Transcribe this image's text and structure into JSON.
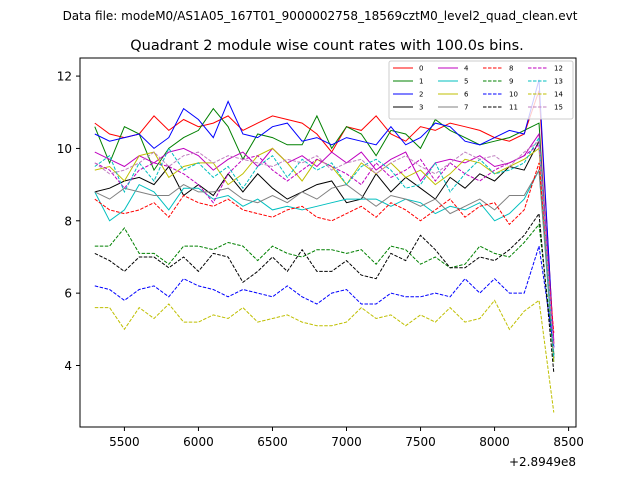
{
  "chart_data": {
    "type": "line",
    "suptitle": "Data file: modeM0/AS1A05_167T01_9000002758_18569cztM0_level2_quad_clean.evt",
    "title": "Quadrant 2 module wise count rates with 100.0s bins.",
    "xlabel": "",
    "ylabel": "",
    "x_offset_label": "+2.8949e8",
    "xlim": [
      5200,
      8550
    ],
    "ylim": [
      2.3,
      12.5
    ],
    "x_ticks": [
      5500,
      6000,
      6500,
      7000,
      7500,
      8000,
      8500
    ],
    "x_tick_labels": [
      "5500",
      "6000",
      "6500",
      "7000",
      "7500",
      "8000",
      "8500"
    ],
    "y_ticks": [
      4,
      6,
      8,
      10,
      12
    ],
    "y_tick_labels": [
      "4",
      "6",
      "8",
      "10",
      "12"
    ],
    "x": [
      5300,
      5400,
      5500,
      5600,
      5700,
      5800,
      5900,
      6000,
      6100,
      6200,
      6300,
      6400,
      6500,
      6600,
      6700,
      6800,
      6900,
      7000,
      7100,
      7200,
      7300,
      7400,
      7500,
      7600,
      7700,
      7800,
      7900,
      8000,
      8100,
      8200,
      8300,
      8400
    ],
    "legend_position": "top-right",
    "series": [
      {
        "name": "0",
        "color": "#ff0000",
        "dash": "solid",
        "values": [
          10.7,
          10.4,
          10.3,
          10.4,
          10.9,
          10.5,
          10.8,
          10.6,
          10.7,
          10.9,
          10.5,
          10.7,
          10.9,
          10.8,
          10.7,
          10.4,
          9.9,
          10.6,
          10.5,
          10.9,
          10.4,
          10.2,
          10.6,
          10.5,
          10.7,
          10.6,
          10.5,
          10.3,
          10.2,
          10.4,
          11.6,
          4.6
        ]
      },
      {
        "name": "1",
        "color": "#008000",
        "dash": "solid",
        "values": [
          10.6,
          9.6,
          10.6,
          10.4,
          9.4,
          10.0,
          10.3,
          10.5,
          11.1,
          10.6,
          9.7,
          10.4,
          10.3,
          10.1,
          10.1,
          10.9,
          10.0,
          10.6,
          10.4,
          9.8,
          10.5,
          10.4,
          10.0,
          10.8,
          10.5,
          10.3,
          10.1,
          10.2,
          10.3,
          10.5,
          10.7,
          4.3
        ]
      },
      {
        "name": "2",
        "color": "#0000ff",
        "dash": "solid",
        "values": [
          10.4,
          10.2,
          10.3,
          10.4,
          10.0,
          10.3,
          11.1,
          10.8,
          10.3,
          11.3,
          10.4,
          10.3,
          10.6,
          10.7,
          10.2,
          10.3,
          10.1,
          10.3,
          10.2,
          10.1,
          10.6,
          10.1,
          10.3,
          10.7,
          10.6,
          10.2,
          10.1,
          10.3,
          10.5,
          10.4,
          11.9,
          4.5
        ]
      },
      {
        "name": "3",
        "color": "#000000",
        "dash": "solid",
        "values": [
          8.8,
          8.9,
          9.1,
          9.2,
          9.0,
          9.5,
          8.7,
          9.0,
          8.7,
          9.3,
          8.8,
          9.3,
          8.9,
          8.6,
          8.8,
          9.0,
          9.1,
          8.5,
          8.6,
          9.3,
          8.8,
          9.2,
          8.9,
          8.6,
          9.2,
          8.9,
          9.3,
          9.1,
          9.5,
          9.4,
          10.2,
          4.2
        ]
      },
      {
        "name": "4",
        "color": "#bf00bf",
        "dash": "solid",
        "values": [
          9.9,
          9.7,
          9.5,
          9.8,
          9.6,
          9.9,
          10.0,
          9.8,
          9.4,
          9.7,
          9.9,
          9.5,
          10.0,
          9.6,
          9.8,
          9.5,
          9.9,
          9.6,
          9.9,
          9.4,
          9.7,
          9.9,
          9.1,
          9.6,
          9.7,
          9.6,
          9.8,
          9.5,
          9.6,
          9.8,
          10.4,
          4.7
        ]
      },
      {
        "name": "5",
        "color": "#00bfbf",
        "dash": "solid",
        "values": [
          8.8,
          8.0,
          8.3,
          9.0,
          8.8,
          8.3,
          8.9,
          8.9,
          8.6,
          8.7,
          8.4,
          8.6,
          8.3,
          8.4,
          8.3,
          8.4,
          8.5,
          8.6,
          8.6,
          8.6,
          8.4,
          8.6,
          8.5,
          8.2,
          8.4,
          8.3,
          8.5,
          8.0,
          8.2,
          8.6,
          9.4,
          4.1
        ]
      },
      {
        "name": "6",
        "color": "#bfbf00",
        "dash": "solid",
        "values": [
          9.4,
          9.5,
          9.1,
          9.8,
          9.9,
          9.2,
          9.5,
          9.6,
          9.6,
          9.0,
          9.3,
          9.8,
          10.0,
          9.6,
          9.1,
          9.7,
          9.5,
          9.0,
          9.6,
          9.3,
          9.6,
          9.2,
          9.4,
          9.0,
          9.3,
          9.7,
          9.6,
          9.3,
          9.5,
          9.7,
          10.0,
          4.1
        ]
      },
      {
        "name": "7",
        "color": "#808080",
        "dash": "solid",
        "values": [
          8.8,
          8.6,
          8.9,
          8.8,
          8.7,
          8.7,
          9.0,
          8.8,
          8.8,
          8.9,
          8.6,
          8.5,
          8.7,
          8.5,
          8.8,
          8.6,
          8.9,
          9.0,
          8.7,
          8.4,
          8.7,
          8.6,
          8.4,
          8.6,
          8.2,
          8.4,
          8.6,
          8.3,
          8.7,
          8.7,
          9.4,
          4.3
        ]
      },
      {
        "name": "8",
        "color": "#ff0000",
        "dash": "dashed",
        "values": [
          8.6,
          8.3,
          8.2,
          8.3,
          8.5,
          8.1,
          8.7,
          8.5,
          8.4,
          8.6,
          8.3,
          8.2,
          8.1,
          8.3,
          8.4,
          8.1,
          8.0,
          8.2,
          8.4,
          8.1,
          8.5,
          8.3,
          8.0,
          8.3,
          8.6,
          8.1,
          8.4,
          8.5,
          7.9,
          8.3,
          9.6,
          4.9
        ]
      },
      {
        "name": "9",
        "color": "#008000",
        "dash": "dashed",
        "values": [
          7.3,
          7.3,
          7.8,
          7.1,
          7.1,
          6.8,
          7.3,
          7.3,
          7.2,
          7.4,
          7.3,
          6.9,
          7.3,
          7.1,
          7.0,
          7.2,
          7.2,
          7.1,
          7.2,
          6.8,
          7.3,
          7.2,
          6.8,
          7.0,
          6.7,
          6.8,
          7.3,
          7.1,
          7.0,
          7.4,
          7.9,
          4.3
        ]
      },
      {
        "name": "10",
        "color": "#0000ff",
        "dash": "dashed",
        "values": [
          6.2,
          6.1,
          5.8,
          6.1,
          6.2,
          5.9,
          6.4,
          6.2,
          6.1,
          5.9,
          6.1,
          6.0,
          5.9,
          6.2,
          5.9,
          5.7,
          6.0,
          6.1,
          5.7,
          5.7,
          6.0,
          5.9,
          5.9,
          6.0,
          5.9,
          6.4,
          6.0,
          6.4,
          6.0,
          6.0,
          7.3,
          4.5
        ]
      },
      {
        "name": "11",
        "color": "#000000",
        "dash": "dashed",
        "values": [
          7.1,
          6.9,
          6.6,
          7.0,
          7.0,
          6.7,
          7.0,
          6.6,
          7.1,
          7.0,
          6.3,
          6.6,
          7.0,
          6.6,
          7.2,
          6.6,
          6.6,
          6.9,
          6.5,
          6.4,
          7.1,
          6.9,
          7.6,
          7.2,
          6.7,
          6.7,
          7.0,
          6.9,
          7.2,
          7.6,
          8.2,
          3.8
        ]
      },
      {
        "name": "12",
        "color": "#bf00bf",
        "dash": "dashed",
        "values": [
          9.6,
          9.4,
          8.9,
          9.4,
          9.6,
          9.5,
          9.3,
          9.0,
          8.5,
          9.3,
          9.7,
          9.8,
          9.4,
          9.1,
          9.4,
          9.7,
          9.5,
          9.3,
          9.0,
          9.6,
          9.2,
          9.4,
          9.7,
          9.1,
          9.6,
          9.3,
          9.1,
          9.4,
          9.6,
          9.8,
          10.1,
          4.6
        ]
      },
      {
        "name": "13",
        "color": "#00bfbf",
        "dash": "dashed",
        "values": [
          9.5,
          9.8,
          8.8,
          9.6,
          9.1,
          10.0,
          9.4,
          9.6,
          9.2,
          9.5,
          8.9,
          9.5,
          9.8,
          9.2,
          9.7,
          9.4,
          9.6,
          9.0,
          9.5,
          9.7,
          9.4,
          8.9,
          9.0,
          9.6,
          8.8,
          9.3,
          9.7,
          9.3,
          9.4,
          9.6,
          10.3,
          4.2
        ]
      },
      {
        "name": "14",
        "color": "#bfbf00",
        "dash": "dashed",
        "values": [
          5.6,
          5.6,
          5.0,
          5.6,
          5.3,
          5.7,
          5.2,
          5.2,
          5.4,
          5.3,
          5.6,
          5.2,
          5.3,
          5.4,
          5.2,
          5.1,
          5.1,
          5.2,
          5.6,
          5.3,
          5.4,
          5.1,
          5.4,
          5.2,
          5.6,
          5.2,
          5.3,
          5.8,
          5.0,
          5.5,
          5.8,
          2.7
        ]
      },
      {
        "name": "15",
        "color": "#c080c0",
        "dash": "dashed",
        "values": [
          9.6,
          9.3,
          9.4,
          9.6,
          9.9,
          9.5,
          9.8,
          9.9,
          9.6,
          9.8,
          9.7,
          9.6,
          9.5,
          9.7,
          9.6,
          9.8,
          9.4,
          9.6,
          9.7,
          9.3,
          9.6,
          9.8,
          9.5,
          9.3,
          9.6,
          9.9,
          9.7,
          9.8,
          9.5,
          9.9,
          10.2,
          4.4
        ]
      }
    ]
  }
}
